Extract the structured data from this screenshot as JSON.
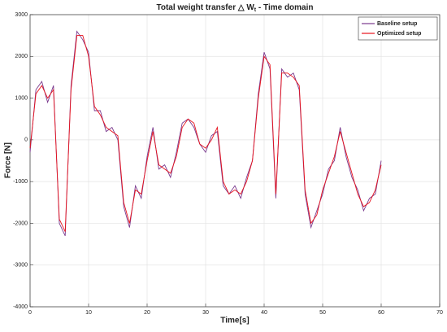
{
  "chart_data": {
    "type": "line",
    "title": "Total weight transfer △ W",
    "title_subscript": "t",
    "title_suffix": " - Time domain",
    "xlabel": "Time[s]",
    "ylabel": "Force [N]",
    "xlim": [
      0,
      70
    ],
    "xticks": [
      0,
      10,
      20,
      30,
      40,
      50,
      60,
      70
    ],
    "ylim": [
      -4000,
      3000
    ],
    "yticks": [
      -4000,
      -3000,
      -2000,
      -1000,
      0,
      1000,
      2000,
      3000
    ],
    "grid": true,
    "legend": "northeast",
    "x": [
      0,
      1,
      2,
      3,
      4,
      5,
      6,
      7,
      8,
      9,
      10,
      11,
      12,
      13,
      14,
      15,
      16,
      17,
      18,
      19,
      20,
      21,
      22,
      23,
      24,
      25,
      26,
      27,
      28,
      29,
      30,
      31,
      32,
      33,
      34,
      35,
      36,
      37,
      38,
      39,
      40,
      41,
      42,
      43,
      44,
      45,
      46,
      47,
      48,
      49,
      50,
      51,
      52,
      53,
      54,
      55,
      56,
      57,
      58,
      59,
      60
    ],
    "series": [
      {
        "name": "Baseline setup",
        "color": "#7a3a8e",
        "values": [
          -300,
          1200,
          1400,
          900,
          1300,
          -2000,
          -2300,
          1300,
          2600,
          2400,
          2100,
          700,
          700,
          200,
          300,
          0,
          -1600,
          -2100,
          -1100,
          -1400,
          -400,
          300,
          -700,
          -600,
          -900,
          -300,
          400,
          500,
          300,
          -100,
          -300,
          100,
          200,
          -1100,
          -1300,
          -1100,
          -1400,
          -900,
          -500,
          1100,
          2100,
          1700,
          -1400,
          1700,
          1500,
          1600,
          1200,
          -1300,
          -2100,
          -1700,
          -1300,
          -700,
          -500,
          300,
          -400,
          -900,
          -1200,
          -1700,
          -1400,
          -1300,
          -500
        ]
      },
      {
        "name": "Optimized setup",
        "color": "#e8121c",
        "values": [
          -200,
          1100,
          1300,
          1000,
          1200,
          -1900,
          -2200,
          1200,
          2500,
          2500,
          2000,
          800,
          600,
          300,
          200,
          100,
          -1500,
          -2000,
          -1200,
          -1300,
          -500,
          200,
          -600,
          -700,
          -800,
          -400,
          300,
          500,
          400,
          -100,
          -200,
          0,
          300,
          -1000,
          -1300,
          -1200,
          -1300,
          -1000,
          -500,
          1000,
          2000,
          1800,
          -1300,
          1600,
          1600,
          1500,
          1300,
          -1200,
          -2000,
          -1800,
          -1200,
          -800,
          -400,
          200,
          -300,
          -800,
          -1300,
          -1600,
          -1500,
          -1200,
          -600
        ]
      }
    ]
  }
}
